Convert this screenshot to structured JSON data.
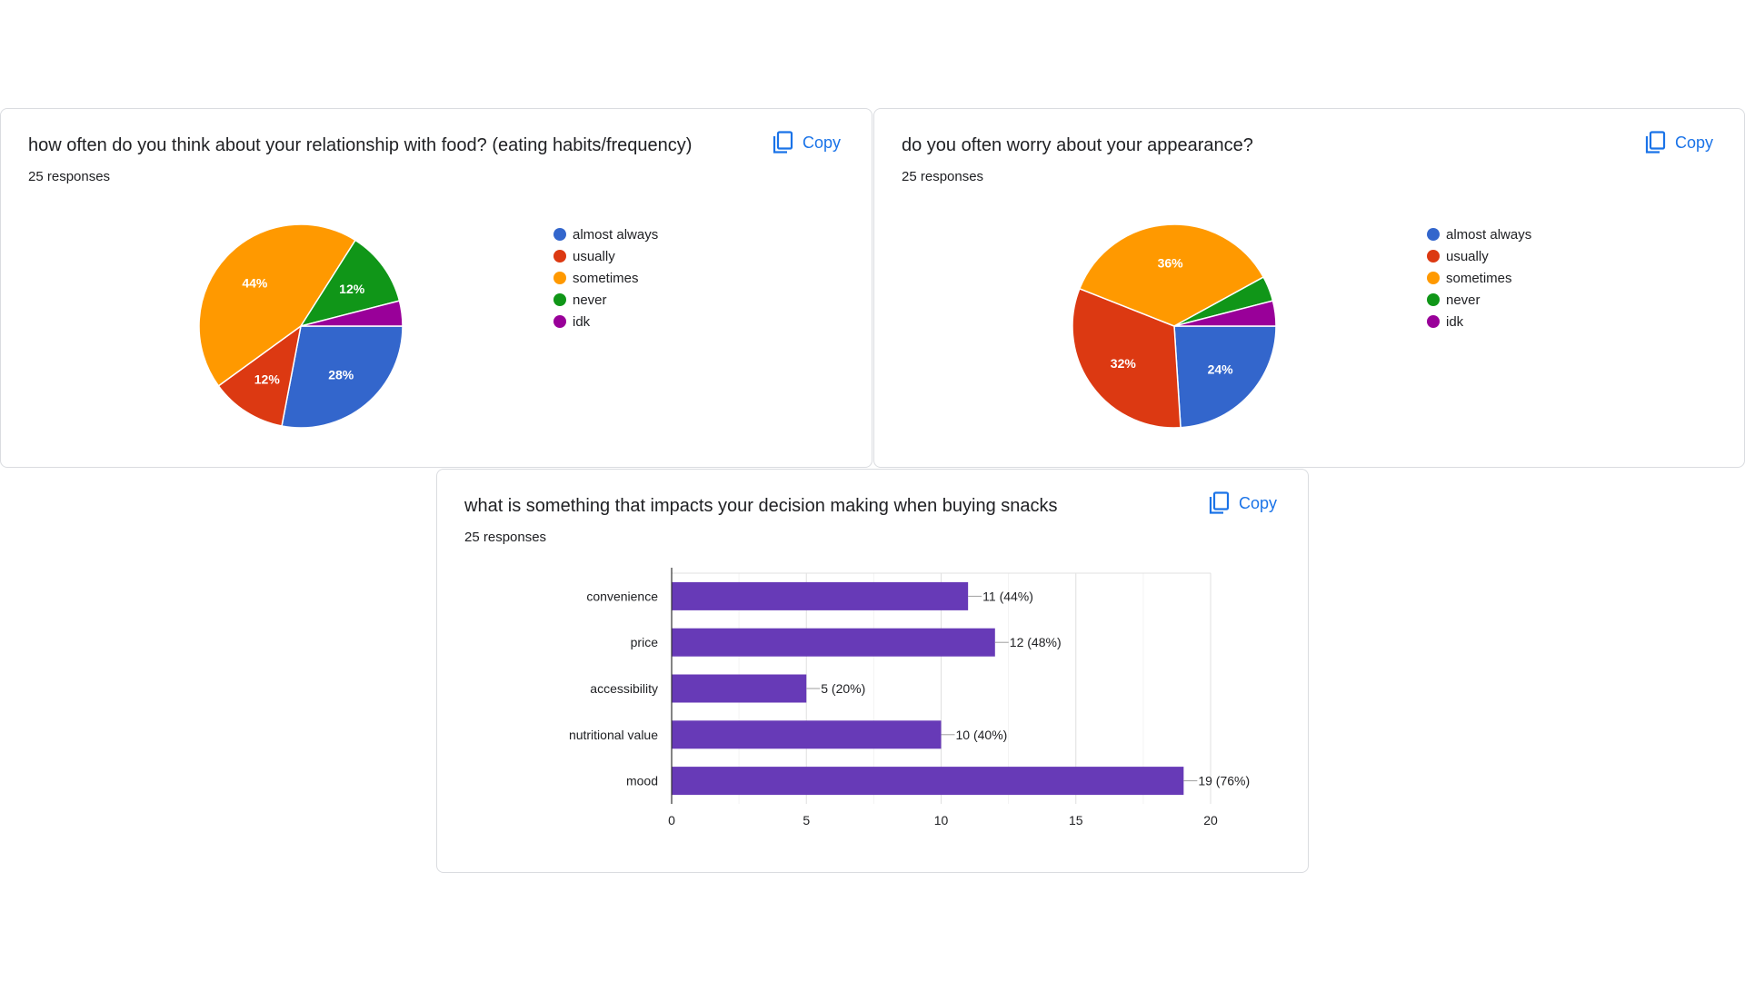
{
  "colors": {
    "almost_always": "#3366cc",
    "usually": "#dc3912",
    "sometimes": "#ff9900",
    "never": "#109618",
    "idk": "#990099",
    "bar": "#673ab7",
    "accent": "#1a73e8"
  },
  "cards": [
    {
      "title": "how often do you think about your relationship with food? (eating habits/frequency)",
      "responses": "25 responses",
      "copy_label": "Copy",
      "copy_icon": "copy-icon"
    },
    {
      "title": "do you often worry about your appearance?",
      "responses": "25 responses",
      "copy_label": "Copy",
      "copy_icon": "copy-icon"
    },
    {
      "title": "what is something that impacts your decision making when buying snacks",
      "responses": "25 responses",
      "copy_label": "Copy",
      "copy_icon": "copy-icon"
    }
  ],
  "chart_data": [
    {
      "type": "pie",
      "title": "how often do you think about your relationship with food? (eating habits/frequency)",
      "legend_position": "right",
      "categories": [
        "almost always",
        "usually",
        "sometimes",
        "never",
        "idk"
      ],
      "values": [
        28,
        12,
        44,
        12,
        4
      ],
      "labels": [
        "28%",
        "12%",
        "44%",
        "12%",
        ""
      ]
    },
    {
      "type": "pie",
      "title": "do you often worry about your appearance?",
      "legend_position": "right",
      "categories": [
        "almost always",
        "usually",
        "sometimes",
        "never",
        "idk"
      ],
      "values": [
        24,
        32,
        36,
        4,
        4
      ],
      "labels": [
        "24%",
        "32%",
        "36%",
        "",
        ""
      ]
    },
    {
      "type": "bar",
      "orientation": "horizontal",
      "title": "what is something that impacts your decision making when buying snacks",
      "categories": [
        "convenience",
        "price",
        "accessibility",
        "nutritional value",
        "mood"
      ],
      "values": [
        11,
        12,
        5,
        10,
        19
      ],
      "value_labels": [
        "11 (44%)",
        "12 (48%)",
        "5 (20%)",
        "10 (40%)",
        "19 (76%)"
      ],
      "xlim": [
        0,
        20
      ],
      "xticks": [
        "0",
        "5",
        "10",
        "15",
        "20"
      ],
      "grid": true
    }
  ]
}
